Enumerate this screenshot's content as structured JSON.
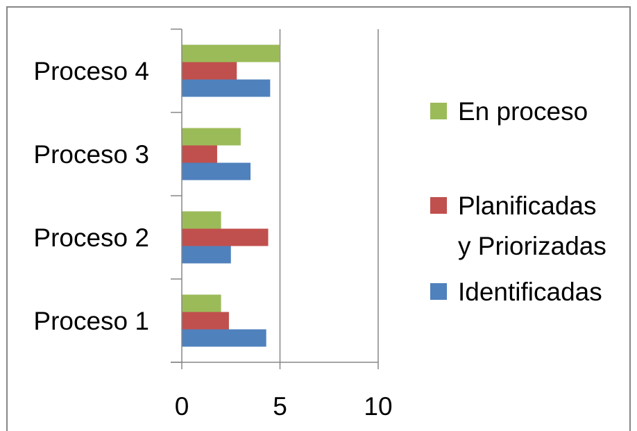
{
  "chart_data": {
    "type": "bar",
    "orientation": "horizontal",
    "categories": [
      "Proceso 1",
      "Proceso 2",
      "Proceso 3",
      "Proceso 4"
    ],
    "series": [
      {
        "name": "Identificadas",
        "values": [
          4.3,
          2.5,
          3.5,
          4.5
        ],
        "color": "#4f81bd"
      },
      {
        "name": "Planificadas y Priorizadas",
        "values": [
          2.4,
          4.4,
          1.8,
          2.8
        ],
        "color": "#c0504d"
      },
      {
        "name": "En proceso",
        "values": [
          2.0,
          2.0,
          3.0,
          5.0
        ],
        "color": "#9bbb59"
      }
    ],
    "xlim": [
      0,
      10
    ],
    "xticks": [
      "0",
      "5",
      "10"
    ],
    "grid": true,
    "legend_position": "right",
    "legend": [
      {
        "lines": [
          "En proceso"
        ],
        "color": "#9bbb59"
      },
      {
        "lines": [
          "Planificadas",
          "y Priorizadas"
        ],
        "color": "#c0504d"
      },
      {
        "lines": [
          "Identificadas"
        ],
        "color": "#4f81bd"
      }
    ]
  }
}
